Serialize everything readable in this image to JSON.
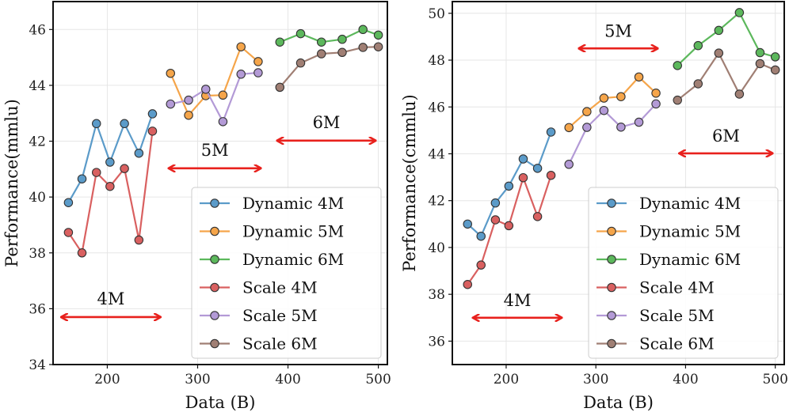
{
  "colors": {
    "dynamic_4m": "#5b9bc9",
    "dynamic_5m": "#f5a54a",
    "dynamic_6m": "#5cb85c",
    "scale_4m": "#d96060",
    "scale_5m": "#b39ad6",
    "scale_6m": "#a07f74",
    "arrow": "#e8211d"
  },
  "chart_data": [
    {
      "type": "line",
      "xlabel": "Data (B)",
      "ylabel": "Performance(mmlu)",
      "xlim": [
        140,
        510
      ],
      "ylim": [
        34,
        47
      ],
      "xticks": [
        "200",
        "300",
        "400",
        "500"
      ],
      "yticks": [
        "34",
        "36",
        "38",
        "40",
        "42",
        "44",
        "46"
      ],
      "grid": true,
      "legend_position": "lower-right",
      "series": [
        {
          "name": "Dynamic 4M",
          "color_key": "dynamic_4m",
          "x": [
            157,
            172,
            188,
            203,
            219,
            235,
            250
          ],
          "y": [
            39.8,
            40.65,
            42.63,
            41.25,
            42.63,
            41.57,
            42.98
          ]
        },
        {
          "name": "Dynamic 5M",
          "color_key": "dynamic_5m",
          "x": [
            270,
            290,
            309,
            328,
            348,
            367
          ],
          "y": [
            44.43,
            42.93,
            43.63,
            43.65,
            45.38,
            44.85
          ]
        },
        {
          "name": "Dynamic 6M",
          "color_key": "dynamic_6m",
          "x": [
            391,
            414,
            437,
            460,
            483,
            500
          ],
          "y": [
            45.55,
            45.85,
            45.55,
            45.65,
            46.0,
            45.8
          ]
        },
        {
          "name": "Scale 4M",
          "color_key": "scale_4m",
          "x": [
            157,
            172,
            188,
            203,
            219,
            235,
            250
          ],
          "y": [
            38.73,
            38.0,
            40.88,
            40.38,
            41.02,
            38.46,
            42.36
          ]
        },
        {
          "name": "Scale 5M",
          "color_key": "scale_5m",
          "x": [
            270,
            290,
            309,
            328,
            348,
            367
          ],
          "y": [
            43.33,
            43.47,
            43.86,
            42.7,
            44.4,
            44.45
          ]
        },
        {
          "name": "Scale 6M",
          "color_key": "scale_6m",
          "x": [
            391,
            414,
            437,
            460,
            483,
            500
          ],
          "y": [
            43.93,
            44.8,
            45.13,
            45.18,
            45.36,
            45.38
          ]
        }
      ],
      "annotations": [
        {
          "label": "4M",
          "x_from": 146,
          "x_to": 262,
          "y": 35.7,
          "label_y": 36.15
        },
        {
          "label": "5M",
          "x_from": 265,
          "x_to": 373,
          "y": 41.03,
          "label_y": 41.48
        },
        {
          "label": "6M",
          "x_from": 385,
          "x_to": 500,
          "y": 42.02,
          "label_y": 42.47
        }
      ]
    },
    {
      "type": "line",
      "xlabel": "Data (B)",
      "ylabel": "Performance(cmmlu)",
      "xlim": [
        140,
        510
      ],
      "ylim": [
        35,
        50.5
      ],
      "xticks": [
        "200",
        "300",
        "400",
        "500"
      ],
      "yticks": [
        "36",
        "38",
        "40",
        "42",
        "44",
        "46",
        "48",
        "50"
      ],
      "grid": true,
      "legend_position": "lower-right",
      "series": [
        {
          "name": "Dynamic 4M",
          "color_key": "dynamic_4m",
          "x": [
            157,
            172,
            188,
            203,
            219,
            235,
            250
          ],
          "y": [
            41.0,
            40.48,
            41.9,
            42.62,
            43.78,
            43.38,
            44.93
          ]
        },
        {
          "name": "Dynamic 5M",
          "color_key": "dynamic_5m",
          "x": [
            270,
            290,
            309,
            328,
            348,
            367
          ],
          "y": [
            45.12,
            45.8,
            46.38,
            46.44,
            47.28,
            46.59
          ]
        },
        {
          "name": "Dynamic 6M",
          "color_key": "dynamic_6m",
          "x": [
            391,
            414,
            437,
            460,
            483,
            500
          ],
          "y": [
            47.77,
            48.62,
            49.27,
            50.03,
            48.32,
            48.14
          ]
        },
        {
          "name": "Scale 4M",
          "color_key": "scale_4m",
          "x": [
            157,
            172,
            188,
            203,
            219,
            235,
            250
          ],
          "y": [
            38.42,
            39.25,
            41.18,
            40.93,
            42.98,
            41.32,
            43.08
          ]
        },
        {
          "name": "Scale 5M",
          "color_key": "scale_5m",
          "x": [
            270,
            290,
            309,
            328,
            348,
            367
          ],
          "y": [
            43.55,
            45.13,
            45.85,
            45.14,
            45.35,
            46.13
          ]
        },
        {
          "name": "Scale 6M",
          "color_key": "scale_6m",
          "x": [
            391,
            414,
            437,
            460,
            483,
            500
          ],
          "y": [
            46.29,
            46.99,
            48.3,
            46.55,
            47.85,
            47.58
          ]
        }
      ],
      "annotations": [
        {
          "label": "4M",
          "x_from": 160,
          "x_to": 265,
          "y": 37.0,
          "label_y": 37.5
        },
        {
          "label": "5M",
          "x_from": 278,
          "x_to": 372,
          "y": 48.5,
          "label_y": 49.0
        },
        {
          "label": "6M",
          "x_from": 390,
          "x_to": 500,
          "y": 44.02,
          "label_y": 44.52
        }
      ]
    }
  ]
}
